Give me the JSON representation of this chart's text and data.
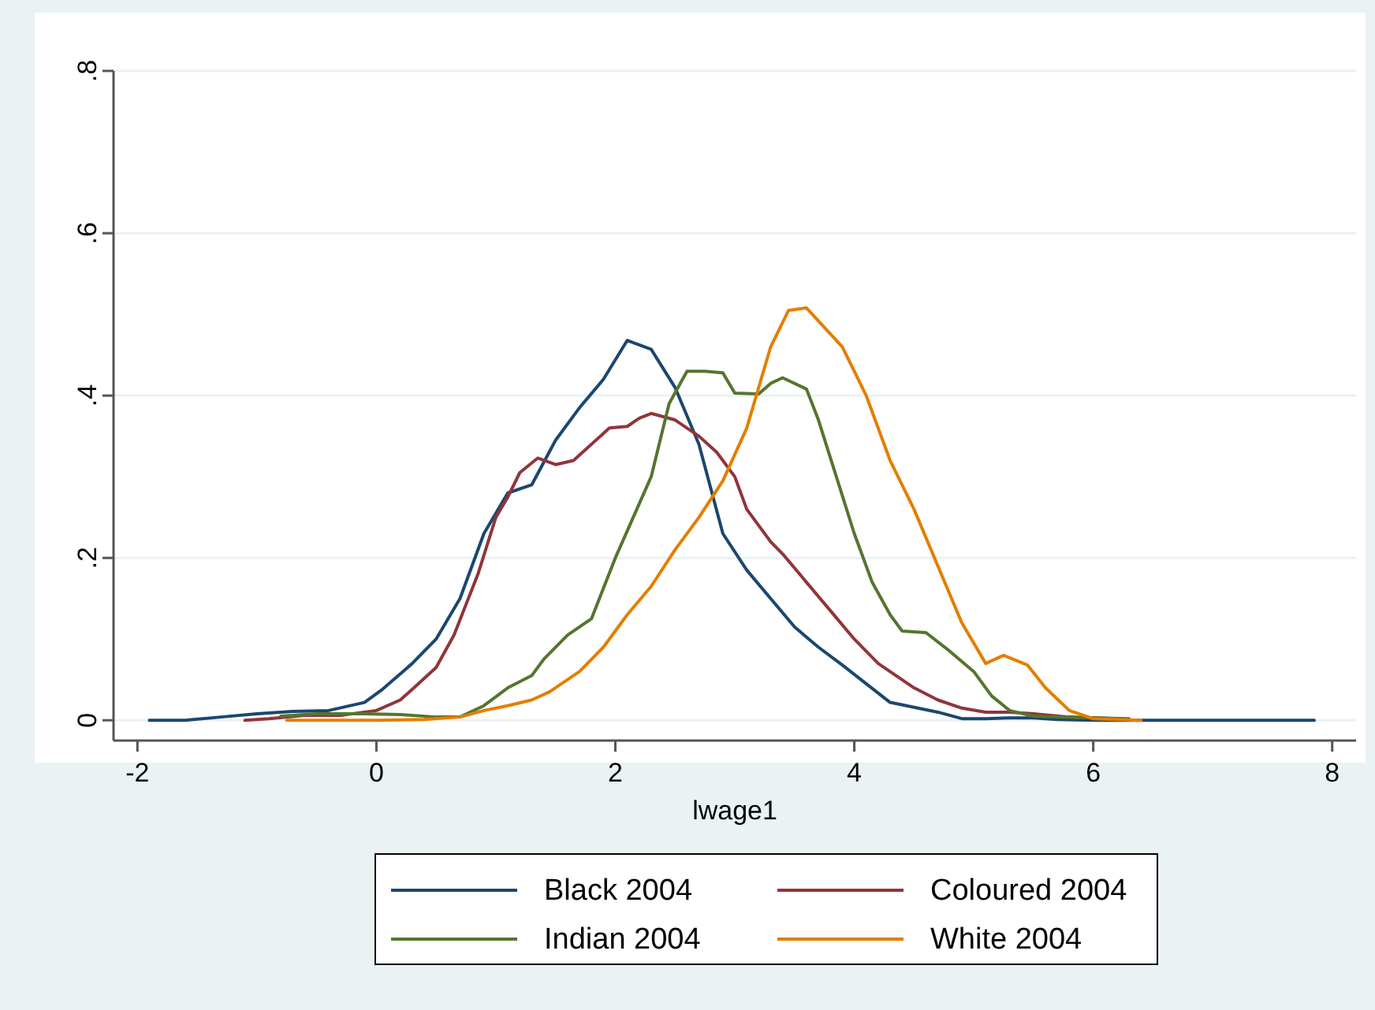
{
  "chart_data": {
    "type": "line",
    "xlabel": "lwage1",
    "xlim": [
      -2.2,
      8.2
    ],
    "xticks": [
      -2,
      0,
      2,
      4,
      6,
      8
    ],
    "ylim": [
      -0.025,
      0.8
    ],
    "yticks": [
      {
        "value": 0,
        "label": "0"
      },
      {
        "value": 0.2,
        "label": ".2"
      },
      {
        "value": 0.4,
        "label": ".4"
      },
      {
        "value": 0.6,
        "label": ".6"
      },
      {
        "value": 0.8,
        "label": ".8"
      }
    ],
    "grid": "y",
    "legend": "bottom",
    "marker": "none",
    "line_style": "solid",
    "series": [
      {
        "name": "Black 2004",
        "color": "#1a476f",
        "x": [
          -1.9,
          -1.6,
          -1.3,
          -1.0,
          -0.7,
          -0.4,
          -0.1,
          0.05,
          0.3,
          0.5,
          0.7,
          0.9,
          1.1,
          1.3,
          1.5,
          1.7,
          1.9,
          2.1,
          2.3,
          2.5,
          2.7,
          2.9,
          3.1,
          3.3,
          3.5,
          3.7,
          3.9,
          4.1,
          4.3,
          4.5,
          4.7,
          4.9,
          5.1,
          5.3,
          5.5,
          5.7,
          6.0,
          6.5,
          7.0,
          7.5,
          7.85
        ],
        "values": [
          0,
          0,
          0.004,
          0.008,
          0.011,
          0.012,
          0.022,
          0.038,
          0.07,
          0.1,
          0.15,
          0.23,
          0.28,
          0.29,
          0.345,
          0.385,
          0.42,
          0.468,
          0.457,
          0.41,
          0.34,
          0.23,
          0.185,
          0.15,
          0.115,
          0.09,
          0.068,
          0.045,
          0.022,
          0.016,
          0.01,
          0.002,
          0.002,
          0.003,
          0.003,
          0.001,
          0,
          0,
          0,
          0,
          0
        ]
      },
      {
        "name": "Coloured 2004",
        "color": "#90353b",
        "x": [
          -1.1,
          -0.9,
          -0.6,
          -0.3,
          0,
          0.2,
          0.3,
          0.5,
          0.65,
          0.85,
          1.0,
          1.1,
          1.2,
          1.35,
          1.5,
          1.65,
          1.95,
          2.1,
          2.2,
          2.3,
          2.5,
          2.7,
          2.85,
          3.0,
          3.1,
          3.3,
          3.4,
          3.6,
          3.8,
          4.0,
          4.2,
          4.5,
          4.7,
          4.9,
          5.1,
          5.3,
          5.5,
          5.8,
          6.2
        ],
        "values": [
          0,
          0.002,
          0.006,
          0.006,
          0.012,
          0.025,
          0.038,
          0.065,
          0.105,
          0.18,
          0.25,
          0.275,
          0.305,
          0.323,
          0.315,
          0.32,
          0.36,
          0.362,
          0.372,
          0.378,
          0.37,
          0.35,
          0.33,
          0.3,
          0.26,
          0.22,
          0.205,
          0.17,
          0.135,
          0.1,
          0.07,
          0.04,
          0.025,
          0.015,
          0.01,
          0.01,
          0.008,
          0.004,
          0.002
        ]
      },
      {
        "name": "Indian 2004",
        "color": "#55752f",
        "x": [
          -0.8,
          -0.5,
          -0.1,
          0.2,
          0.5,
          0.7,
          0.9,
          1.1,
          1.3,
          1.4,
          1.6,
          1.8,
          2.0,
          2.3,
          2.45,
          2.6,
          2.75,
          2.9,
          3.0,
          3.2,
          3.3,
          3.4,
          3.6,
          3.7,
          3.85,
          4.0,
          4.15,
          4.3,
          4.4,
          4.6,
          4.8,
          5.0,
          5.15,
          5.3,
          5.5,
          5.7,
          6.0,
          6.3
        ],
        "values": [
          0.005,
          0.008,
          0.008,
          0.007,
          0.004,
          0.004,
          0.018,
          0.04,
          0.055,
          0.075,
          0.105,
          0.125,
          0.2,
          0.3,
          0.39,
          0.43,
          0.43,
          0.428,
          0.403,
          0.402,
          0.415,
          0.422,
          0.408,
          0.37,
          0.3,
          0.23,
          0.17,
          0.13,
          0.11,
          0.108,
          0.085,
          0.06,
          0.03,
          0.012,
          0.005,
          0.004,
          0.003,
          0.002
        ]
      },
      {
        "name": "White 2004",
        "color": "#e37e00",
        "x": [
          -0.75,
          -0.3,
          0,
          0.4,
          0.7,
          0.9,
          1.1,
          1.3,
          1.45,
          1.7,
          1.9,
          2.1,
          2.3,
          2.5,
          2.7,
          2.9,
          3.1,
          3.3,
          3.45,
          3.6,
          3.9,
          4.1,
          4.3,
          4.5,
          4.7,
          4.9,
          5.1,
          5.25,
          5.45,
          5.6,
          5.8,
          6.0,
          6.4
        ],
        "values": [
          0,
          0,
          0,
          0.001,
          0.004,
          0.012,
          0.018,
          0.025,
          0.035,
          0.06,
          0.09,
          0.13,
          0.165,
          0.21,
          0.25,
          0.295,
          0.36,
          0.46,
          0.505,
          0.508,
          0.46,
          0.4,
          0.32,
          0.26,
          0.19,
          0.12,
          0.07,
          0.08,
          0.068,
          0.04,
          0.012,
          0.002,
          0
        ]
      }
    ]
  }
}
